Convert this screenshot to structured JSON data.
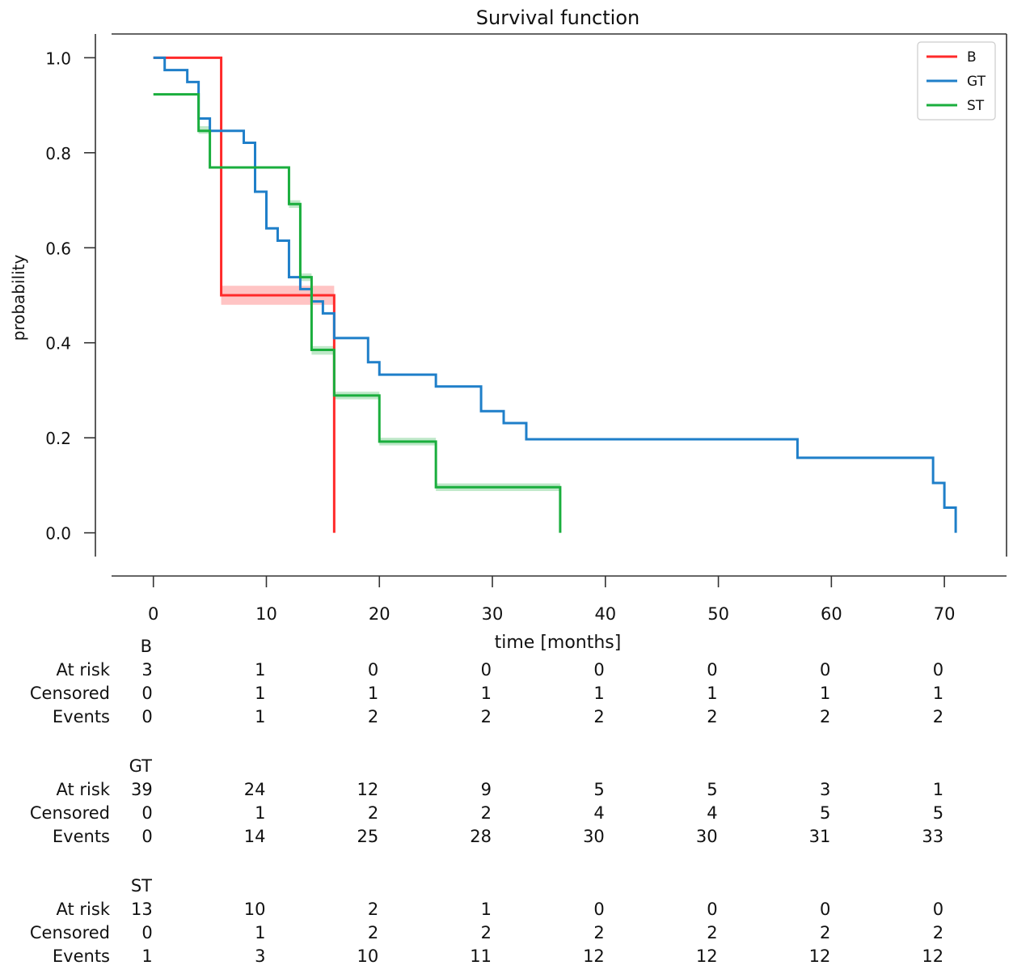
{
  "chart_data": {
    "type": "line",
    "title": "Survival function",
    "xlabel": "time [months]",
    "ylabel": "probability",
    "xlim": [
      -3.7,
      75.5
    ],
    "ylim": [
      -0.05,
      1.05
    ],
    "xticks": [
      0,
      10,
      20,
      30,
      40,
      50,
      60,
      70
    ],
    "yticks": [
      0.0,
      0.2,
      0.4,
      0.6,
      0.8,
      1.0
    ],
    "ytick_labels": [
      "0.0",
      "0.2",
      "0.4",
      "0.6",
      "0.8",
      "1.0"
    ],
    "grid": false,
    "legend_position": "top-right",
    "series": [
      {
        "name": "B",
        "color": "#ff2a2a",
        "x": [
          0,
          6,
          16
        ],
        "y": [
          1.0,
          0.5,
          0.0
        ],
        "end": 16,
        "ci": [
          [
            6,
            16,
            0.48,
            0.52
          ]
        ]
      },
      {
        "name": "GT",
        "color": "#1f7fc9",
        "x": [
          0,
          1,
          3,
          4,
          5,
          8,
          9,
          10,
          11,
          12,
          13,
          14,
          15,
          16,
          19,
          20,
          25,
          29,
          31,
          33,
          57,
          69,
          70,
          71
        ],
        "y": [
          1.0,
          0.974,
          0.949,
          0.872,
          0.846,
          0.821,
          0.718,
          0.641,
          0.615,
          0.538,
          0.513,
          0.487,
          0.462,
          0.41,
          0.359,
          0.333,
          0.308,
          0.256,
          0.231,
          0.197,
          0.158,
          0.105,
          0.053,
          0.0
        ],
        "end": 71,
        "ci": []
      },
      {
        "name": "ST",
        "color": "#1aae3d",
        "x": [
          0,
          4,
          5,
          12,
          13,
          14,
          16,
          20,
          25,
          36
        ],
        "y": [
          0.923,
          0.846,
          0.769,
          0.692,
          0.538,
          0.385,
          0.289,
          0.192,
          0.096,
          0.0
        ],
        "end": 36,
        "ci": [
          [
            4,
            5,
            0.84,
            0.856
          ],
          [
            12,
            13,
            0.684,
            0.7
          ],
          [
            13,
            14,
            0.53,
            0.546
          ],
          [
            14,
            16,
            0.375,
            0.393
          ],
          [
            16,
            20,
            0.281,
            0.297
          ],
          [
            20,
            25,
            0.184,
            0.2
          ],
          [
            25,
            36,
            0.088,
            0.104
          ]
        ]
      }
    ]
  },
  "risk_table": {
    "row_labels": [
      "At risk",
      "Censored",
      "Events"
    ],
    "groups": [
      {
        "name": "B",
        "at_risk": [
          "3",
          "1",
          "0",
          "0",
          "0",
          "0",
          "0",
          "0"
        ],
        "censored": [
          "0",
          "1",
          "1",
          "1",
          "1",
          "1",
          "1",
          "1"
        ],
        "events": [
          "0",
          "1",
          "2",
          "2",
          "2",
          "2",
          "2",
          "2"
        ]
      },
      {
        "name": "GT",
        "at_risk": [
          "39",
          "24",
          "12",
          "9",
          "5",
          "5",
          "3",
          "1"
        ],
        "censored": [
          "0",
          "1",
          "2",
          "2",
          "4",
          "4",
          "5",
          "5"
        ],
        "events": [
          "0",
          "14",
          "25",
          "28",
          "30",
          "30",
          "31",
          "33"
        ]
      },
      {
        "name": "ST",
        "at_risk": [
          "13",
          "10",
          "2",
          "1",
          "0",
          "0",
          "0",
          "0"
        ],
        "censored": [
          "0",
          "1",
          "2",
          "2",
          "2",
          "2",
          "2",
          "2"
        ],
        "events": [
          "1",
          "3",
          "10",
          "11",
          "12",
          "12",
          "12",
          "12"
        ]
      }
    ]
  }
}
